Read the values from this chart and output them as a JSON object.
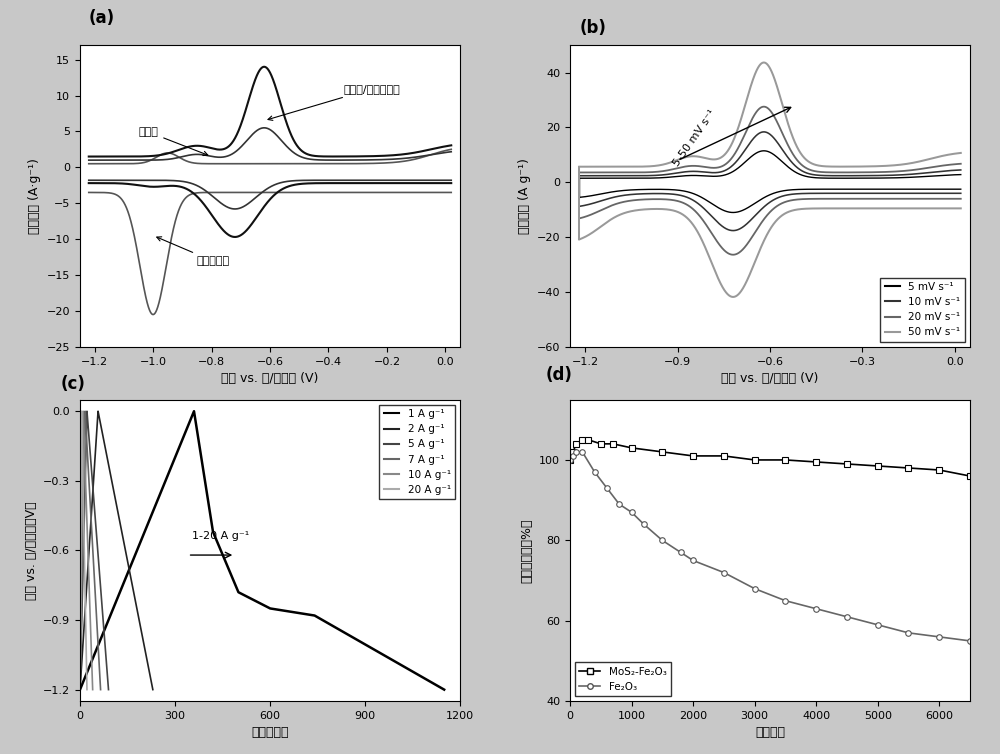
{
  "fig_width": 10.0,
  "fig_height": 7.54,
  "bg_color": "#c8c8c8",
  "panel_bg": "#ffffff",
  "font_color": "#000000",
  "a_xlabel": "电势 vs. 汞/氧化汞 (V)",
  "a_ylabel": "电流密度 (A·g⁻¹)",
  "a_xlim": [
    -1.25,
    0.05
  ],
  "a_ylim": [
    -25,
    17
  ],
  "a_xticks": [
    -1.2,
    -1.0,
    -0.8,
    -0.6,
    -0.4,
    -0.2,
    0.0
  ],
  "a_yticks": [
    -25,
    -20,
    -15,
    -10,
    -5,
    0,
    5,
    10,
    15
  ],
  "a_label1": "硫化颅",
  "a_label2": "三氧化二铁",
  "a_label3": "硫化颅/三氧化二铁",
  "b_xlabel": "电势 vs. 汞/氧化汞 (V)",
  "b_ylabel": "电流密度 (A g⁻¹)",
  "b_xlim": [
    -1.25,
    0.05
  ],
  "b_ylim": [
    -60,
    50
  ],
  "b_xticks": [
    -1.2,
    -0.9,
    -0.6,
    -0.3,
    0.0
  ],
  "b_yticks": [
    -60,
    -40,
    -20,
    0,
    20,
    40
  ],
  "b_annotation": "5-50 mV s⁻¹",
  "b_legend": [
    "5 mV s⁻¹",
    "10 mV s⁻¹",
    "20 mV s⁻¹",
    "50 mV s⁻¹"
  ],
  "c_xlabel": "时间（秒）",
  "c_ylabel": "电势 vs. 汞/氧化汞（V）",
  "c_xlim": [
    0,
    1200
  ],
  "c_ylim": [
    -1.25,
    0.05
  ],
  "c_xticks": [
    0,
    300,
    600,
    900,
    1200
  ],
  "c_yticks": [
    0.0,
    -0.3,
    -0.6,
    -0.9,
    -1.2
  ],
  "c_annotation": "1-20 A g⁻¹",
  "c_legend": [
    "1 A g⁻¹",
    "2 A g⁻¹",
    "5 A g⁻¹",
    "7 A g⁻¹",
    "10 A g⁻¹",
    "20 A g⁻¹"
  ],
  "d_xlabel": "循环圈数",
  "d_ylabel": "容量保持率（%）",
  "d_xlim": [
    0,
    6500
  ],
  "d_ylim": [
    40,
    115
  ],
  "d_xticks": [
    0,
    1000,
    2000,
    3000,
    4000,
    5000,
    6000
  ],
  "d_yticks": [
    40,
    60,
    80,
    100
  ],
  "d_legend": [
    "MoS₂-Fe₂O₃",
    "Fe₂O₃"
  ]
}
